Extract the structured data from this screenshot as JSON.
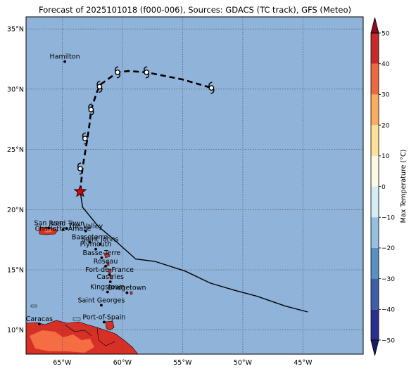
{
  "title": "Forecast of 2025101018 (f000-006), Sources: GDACS (TC track), GFS (Meteo)",
  "map": {
    "lon_range": [
      -68,
      -40
    ],
    "lat_range": [
      8,
      36
    ],
    "ocean_color": "#8fb3d9",
    "grid_style": "dotted",
    "lon_ticks": [
      -65,
      -60,
      -55,
      -50,
      -45
    ],
    "lon_tick_labels": [
      "65°W",
      "60°W",
      "55°W",
      "50°W",
      "45°W"
    ],
    "lat_ticks": [
      10,
      15,
      20,
      25,
      30,
      35
    ],
    "lat_tick_labels": [
      "10°N",
      "15°N",
      "20°N",
      "25°N",
      "30°N",
      "35°N"
    ]
  },
  "cities": [
    {
      "name": "Hamilton",
      "lon": -64.78,
      "lat": 32.29
    },
    {
      "name": "San Juan",
      "lon": -66.11,
      "lat": 18.47
    },
    {
      "name": "Road Town",
      "lon": -64.62,
      "lat": 18.43
    },
    {
      "name": "Charlotte Amalie",
      "lon": -64.93,
      "lat": 18.34
    },
    {
      "name": "The Valley",
      "lon": -63.05,
      "lat": 18.22
    },
    {
      "name": "Basseterre",
      "lon": -62.72,
      "lat": 17.3
    },
    {
      "name": "Saint Johns",
      "lon": -61.85,
      "lat": 17.12
    },
    {
      "name": "Plymouth",
      "lon": -62.21,
      "lat": 16.71
    },
    {
      "name": "Basse-Terre",
      "lon": -61.72,
      "lat": 16.0
    },
    {
      "name": "Roseau",
      "lon": -61.39,
      "lat": 15.3
    },
    {
      "name": "Fort-de-France",
      "lon": -61.07,
      "lat": 14.6
    },
    {
      "name": "Castries",
      "lon": -61.0,
      "lat": 14.01
    },
    {
      "name": "Kingstown",
      "lon": -61.23,
      "lat": 13.16
    },
    {
      "name": "Bridgetown",
      "lon": -59.62,
      "lat": 13.1
    },
    {
      "name": "Saint Georges",
      "lon": -61.75,
      "lat": 12.06
    },
    {
      "name": "Port-of-Spain",
      "lon": -61.52,
      "lat": 10.66
    },
    {
      "name": "Caracas",
      "lon": -66.9,
      "lat": 10.5
    }
  ],
  "past_track": [
    [
      -44.6,
      11.5
    ],
    [
      -46.5,
      12.0
    ],
    [
      -48.8,
      12.8
    ],
    [
      -50.7,
      13.3
    ],
    [
      -52.7,
      13.9
    ],
    [
      -54.8,
      14.9
    ],
    [
      -57.3,
      15.7
    ],
    [
      -58.9,
      15.9
    ],
    [
      -60.8,
      17.6
    ],
    [
      -62.0,
      18.6
    ],
    [
      -63.3,
      20.2
    ],
    [
      -63.5,
      21.5
    ]
  ],
  "current_position": {
    "lon": -63.5,
    "lat": 21.5,
    "marker": "red-star"
  },
  "forecast_track": [
    [
      -63.5,
      21.5
    ],
    [
      -63.4,
      22.5
    ],
    [
      -63.3,
      23.5
    ],
    [
      -62.9,
      25.9
    ],
    [
      -62.7,
      27.3
    ],
    [
      -62.6,
      28.3
    ],
    [
      -62.1,
      29.8
    ],
    [
      -61.8,
      30.4
    ],
    [
      -60.4,
      31.4
    ],
    [
      -59.5,
      31.5
    ],
    [
      -58.0,
      31.4
    ],
    [
      -55.0,
      30.8
    ],
    [
      -52.6,
      30.1
    ]
  ],
  "forecast_points": [
    [
      -63.5,
      23.4
    ],
    [
      -63.1,
      25.9
    ],
    [
      -62.6,
      28.3
    ],
    [
      -61.9,
      30.2
    ],
    [
      -60.4,
      31.4
    ],
    [
      -58.0,
      31.4
    ],
    [
      -52.6,
      30.1
    ]
  ],
  "colorbar": {
    "label": "Max Temperature (°C)",
    "range": [
      -50,
      50
    ],
    "ticks": [
      50,
      40,
      30,
      20,
      10,
      0,
      -10,
      -20,
      -30,
      -40,
      -50
    ],
    "tick_labels": [
      "50",
      "40",
      "30",
      "20",
      "10",
      "0",
      "−10",
      "−20",
      "−30",
      "−40",
      "−50"
    ],
    "bins": [
      {
        "from": -50,
        "to": -40,
        "color": "#2b2f8f"
      },
      {
        "from": -40,
        "to": -30,
        "color": "#3e5ea8"
      },
      {
        "from": -30,
        "to": -20,
        "color": "#5a8fc1"
      },
      {
        "from": -20,
        "to": -10,
        "color": "#93c1de"
      },
      {
        "from": -10,
        "to": 0,
        "color": "#d4ecf3"
      },
      {
        "from": 0,
        "to": 10,
        "color": "#fbfbe4"
      },
      {
        "from": 10,
        "to": 20,
        "color": "#fde19b"
      },
      {
        "from": 20,
        "to": 30,
        "color": "#f9ad60"
      },
      {
        "from": 30,
        "to": 40,
        "color": "#ec6a40"
      },
      {
        "from": 40,
        "to": 50,
        "color": "#c62a2a"
      }
    ],
    "extend_low_color": "#1a1a6e",
    "extend_high_color": "#8a0d1f"
  },
  "land_colors": {
    "hot": "#d73027",
    "warm": "#f46d43",
    "outline": "#000000"
  }
}
